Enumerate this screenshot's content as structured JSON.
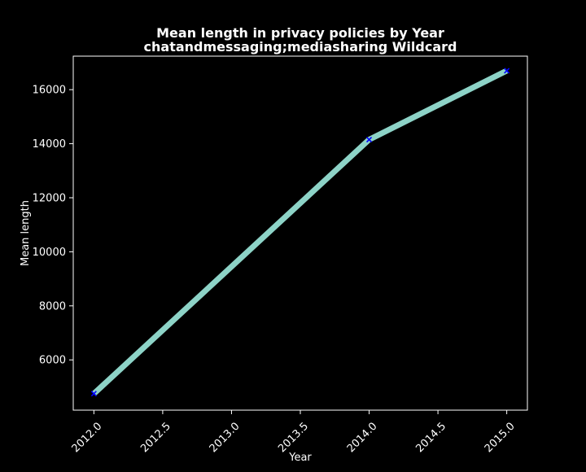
{
  "chart_data": {
    "type": "line",
    "title": "Mean length in privacy policies by Year",
    "subtitle": "chatandmessaging;mediasharing Wildcard",
    "xlabel": "Year",
    "ylabel": "Mean length",
    "x": [
      2012,
      2014,
      2015
    ],
    "y": [
      4750,
      14150,
      16700
    ],
    "xlim": [
      2011.85,
      2015.15
    ],
    "ylim": [
      4140,
      17240
    ],
    "xticks": [
      2012.0,
      2012.5,
      2013.0,
      2013.5,
      2014.0,
      2014.5,
      2015.0
    ],
    "xtick_labels": [
      "2012.0",
      "2012.5",
      "2013.0",
      "2013.5",
      "2014.0",
      "2014.5",
      "2015.0"
    ],
    "yticks": [
      6000,
      8000,
      10000,
      12000,
      14000,
      16000
    ],
    "ytick_labels": [
      "6000",
      "8000",
      "10000",
      "12000",
      "14000",
      "16000"
    ],
    "grid": false,
    "legend": "none",
    "colors": {
      "background": "#000000",
      "axes": "#ffffff",
      "line": "#8dd3c7",
      "marker": "#0000ff"
    },
    "marker": "x-icon"
  }
}
